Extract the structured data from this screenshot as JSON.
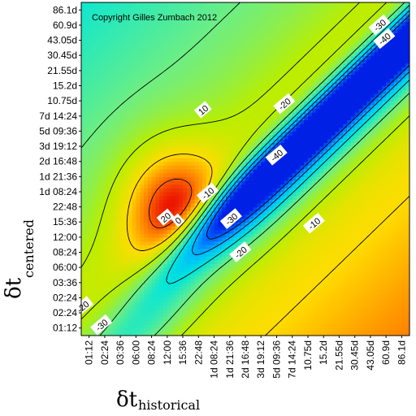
{
  "chart_data": {
    "type": "heatmap",
    "title": "",
    "annotation": "Copyright Gilles Zumbach 2012",
    "xlabel": {
      "symbol": "δt",
      "subscript": "historical"
    },
    "ylabel": {
      "symbol": "δt",
      "subscript": "centered"
    },
    "x_ticks": [
      "01:12",
      "02:24",
      "03:36",
      "06:00",
      "08:24",
      "12:00",
      "15:36",
      "22:48",
      "1d 08:24",
      "1d 21:36",
      "2d 16:48",
      "3d 19:12",
      "5d 09:36",
      "7d 14:24",
      "10.75d",
      "15.2d",
      "21.55d",
      "30.45d",
      "43.05d",
      "60.9d",
      "86.1d"
    ],
    "y_ticks": [
      "01:12",
      "02:24",
      "02:24",
      "03:36",
      "06:00",
      "08:24",
      "12:00",
      "15:36",
      "22:48",
      "1d 08:24",
      "1d 21:36",
      "2d 16:48",
      "3d 19:12",
      "5d 09:36",
      "7d 14:24",
      "10.75d",
      "15.2d",
      "21.55d",
      "30.45d",
      "43.05d",
      "60.9d",
      "86.1d"
    ],
    "z_range": [
      -50,
      25
    ],
    "contour_levels": [
      -40,
      -30,
      -20,
      -10,
      0,
      10,
      20
    ],
    "contour_labels": [
      {
        "text": "-30",
        "x_idx": 19.1,
        "y_idx": 20.5
      },
      {
        "text": "-40",
        "x_idx": 19.4,
        "y_idx": 19.6
      },
      {
        "text": "10",
        "x_idx": 7.8,
        "y_idx": 14.9
      },
      {
        "text": "-20",
        "x_idx": 13.0,
        "y_idx": 15.3
      },
      {
        "text": "-40",
        "x_idx": 12.5,
        "y_idx": 11.9
      },
      {
        "text": "-10",
        "x_idx": 8.1,
        "y_idx": 9.4
      },
      {
        "text": "20",
        "x_idx": 5.4,
        "y_idx": 7.8
      },
      {
        "text": "0",
        "x_idx": 6.2,
        "y_idx": 7.6
      },
      {
        "text": "-30",
        "x_idx": 9.6,
        "y_idx": 7.7
      },
      {
        "text": "-10",
        "x_idx": 14.9,
        "y_idx": 7.4
      },
      {
        "text": "-20",
        "x_idx": 10.2,
        "y_idx": 5.5
      },
      {
        "text": "-20",
        "x_idx": 0.1,
        "y_idx": 1.9
      },
      {
        "text": "-30",
        "x_idx": 1.3,
        "y_idx": 0.7
      }
    ],
    "grid": false,
    "legend": "none"
  }
}
